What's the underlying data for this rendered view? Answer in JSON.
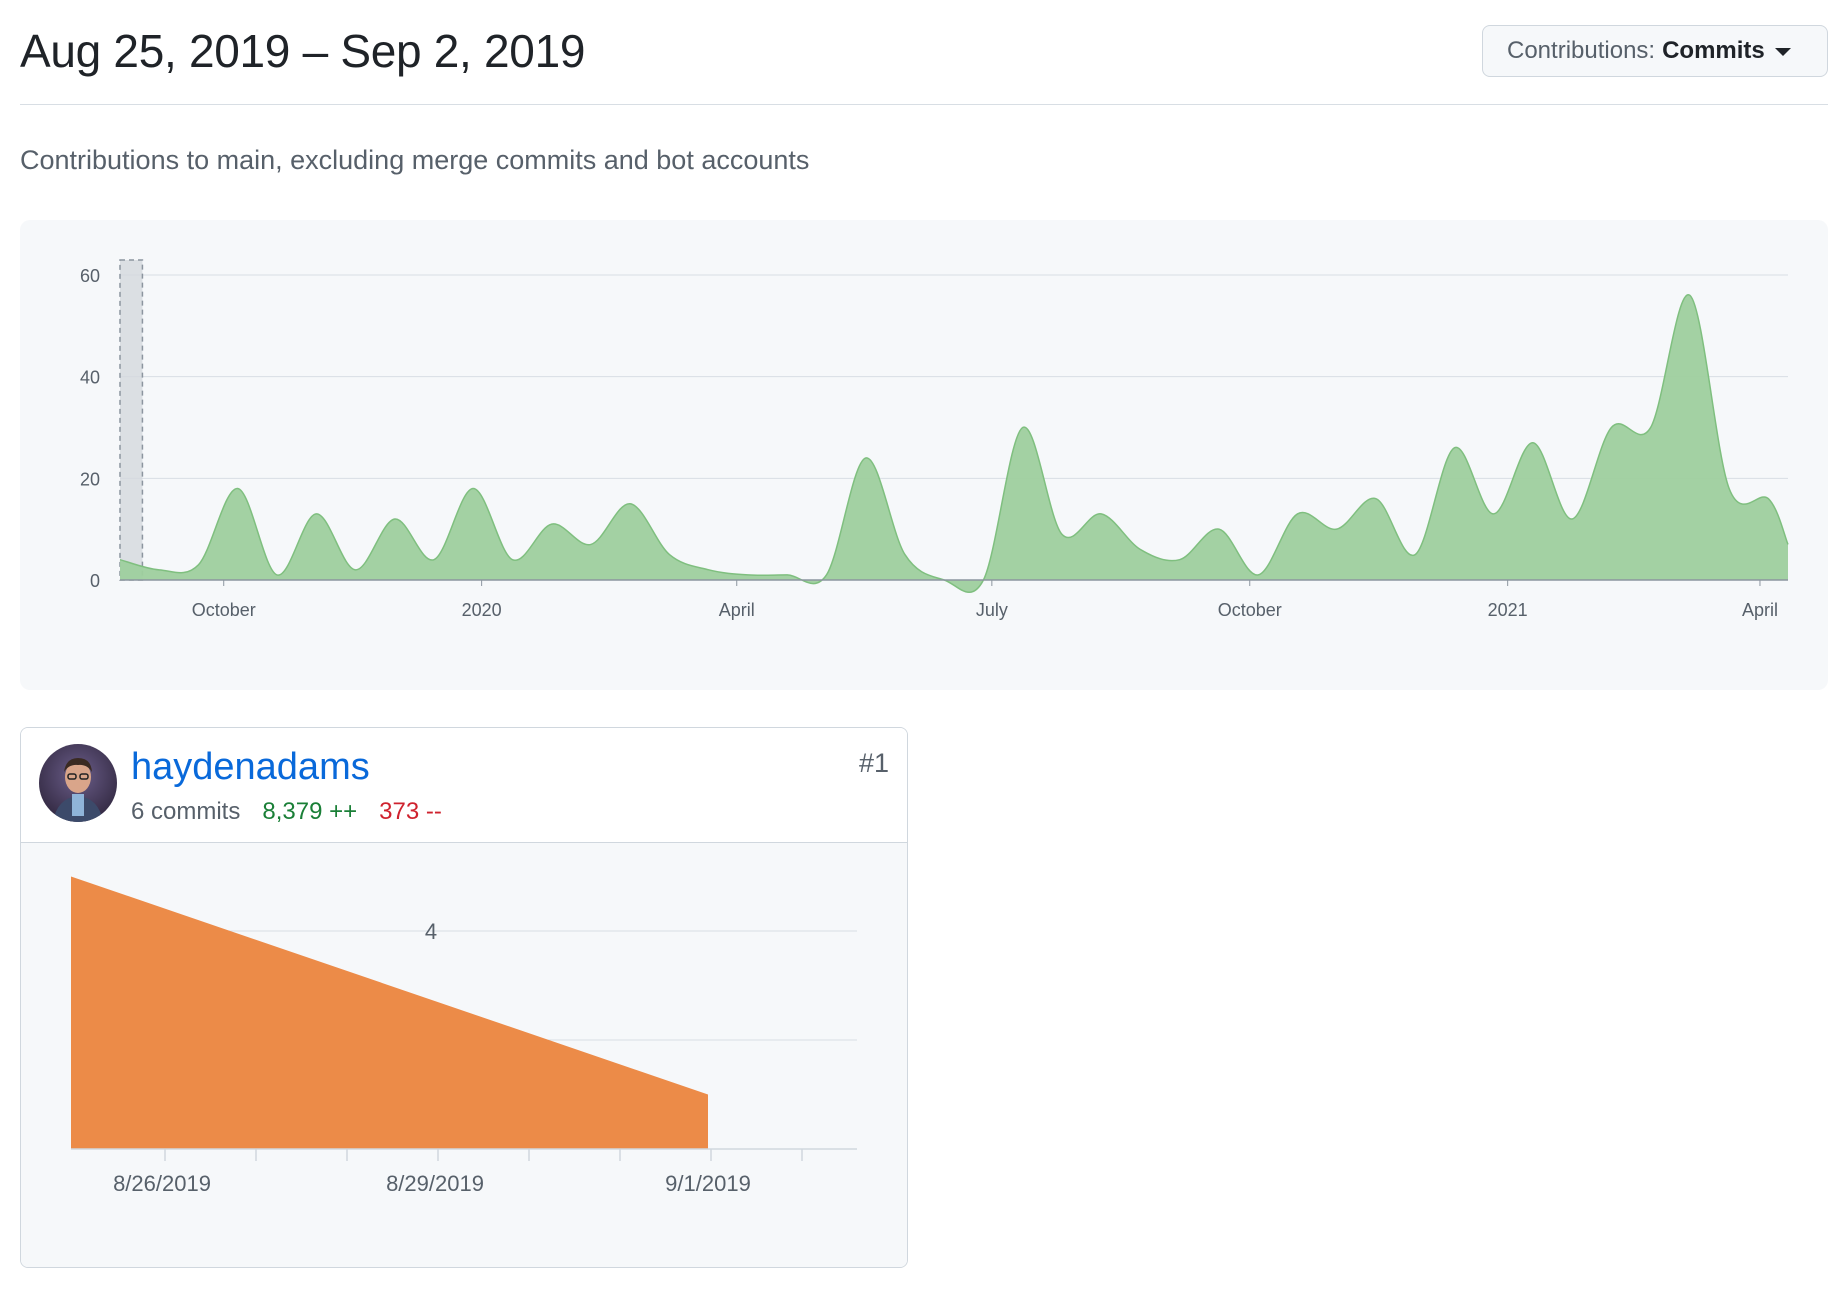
{
  "header": {
    "date_range": "Aug 25, 2019 – Sep 2, 2019",
    "dropdown_prefix": "Contributions:",
    "dropdown_value": "Commits"
  },
  "subtitle": "Contributions to main, excluding merge commits and bot accounts",
  "contributor": {
    "username": "haydenadams",
    "commits": "6 commits",
    "additions": "8,379 ++",
    "deletions": "373 --",
    "rank": "#1"
  },
  "colors": {
    "overview_fill": "#9ecf9e",
    "overview_stroke": "#7fbf7f",
    "contributor_fill": "#ec8b48",
    "link": "#0969da"
  },
  "chart_data": [
    {
      "type": "area",
      "x_tick_labels": [
        "October",
        "2020",
        "April",
        "July",
        "October",
        "2021",
        "April"
      ],
      "y_tick_labels": [
        "0",
        "20",
        "40",
        "60"
      ],
      "ylim": [
        0,
        60
      ],
      "x_range": [
        "2019-08-25",
        "2021-04-11"
      ],
      "selected_range": [
        "2019-08-25",
        "2019-09-02"
      ],
      "x": [
        "2019-08-25",
        "2019-09-08",
        "2019-09-22",
        "2019-10-06",
        "2019-10-20",
        "2019-11-03",
        "2019-11-17",
        "2019-12-01",
        "2019-12-15",
        "2019-12-29",
        "2020-01-12",
        "2020-01-26",
        "2020-02-09",
        "2020-02-23",
        "2020-03-08",
        "2020-03-22",
        "2020-04-05",
        "2020-04-19",
        "2020-05-03",
        "2020-05-17",
        "2020-05-31",
        "2020-06-14",
        "2020-06-28",
        "2020-07-12",
        "2020-07-26",
        "2020-08-09",
        "2020-08-23",
        "2020-09-06",
        "2020-09-20",
        "2020-10-04",
        "2020-10-18",
        "2020-11-01",
        "2020-11-15",
        "2020-11-29",
        "2020-12-13",
        "2020-12-27",
        "2021-01-10",
        "2021-01-24",
        "2021-02-07",
        "2021-02-21",
        "2021-03-07",
        "2021-03-21",
        "2021-04-04",
        "2021-04-11"
      ],
      "values": [
        4,
        2,
        3,
        18,
        1,
        13,
        2,
        12,
        4,
        18,
        4,
        11,
        7,
        15,
        5,
        2,
        1,
        1,
        1,
        24,
        5,
        0,
        0,
        30,
        9,
        13,
        6,
        4,
        10,
        1,
        13,
        10,
        16,
        5,
        26,
        13,
        27,
        12,
        30,
        30,
        56,
        18,
        16,
        7
      ]
    },
    {
      "type": "area",
      "x_tick_labels": [
        "8/26/2019",
        "8/29/2019",
        "9/1/2019"
      ],
      "y_tick_labels": [
        "4"
      ],
      "ylim": [
        0,
        6
      ],
      "x": [
        "2019-08-25",
        "2019-09-01"
      ],
      "values": [
        5,
        1
      ]
    }
  ]
}
